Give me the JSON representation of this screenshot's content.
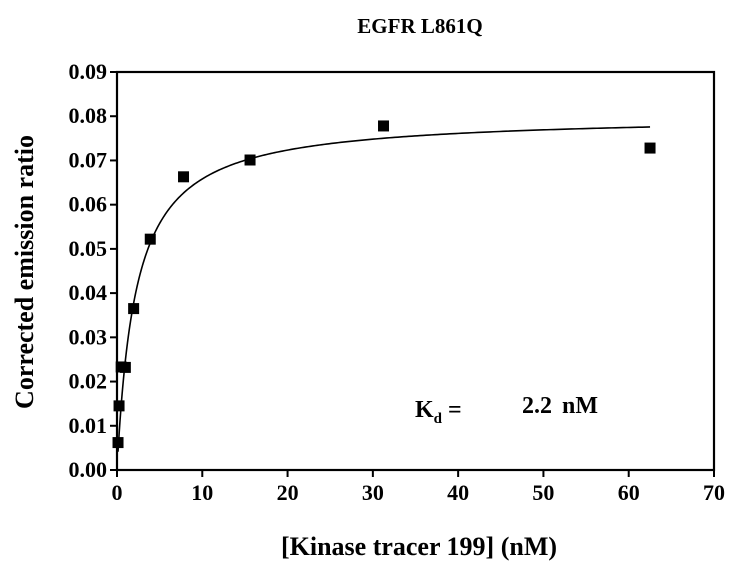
{
  "chart_data": {
    "type": "scatter",
    "title": "EGFR L861Q",
    "xlabel": "[Kinase tracer 199] (nM)",
    "ylabel": "Corrected emission ratio",
    "xlim": [
      0,
      70
    ],
    "ylim": [
      0,
      0.09
    ],
    "xticks": [
      "0",
      "10",
      "20",
      "30",
      "40",
      "50",
      "60",
      "70"
    ],
    "yticks": [
      "0.00",
      "0.01",
      "0.02",
      "0.03",
      "0.04",
      "0.05",
      "0.06",
      "0.07",
      "0.08",
      "0.09"
    ],
    "series": [
      {
        "kind": "points",
        "marker": "square",
        "x": [
          0.12,
          0.24,
          0.49,
          0.98,
          1.95,
          3.9,
          7.8,
          15.6,
          31.25,
          62.5
        ],
        "y": [
          0.0062,
          0.0145,
          0.0233,
          0.0232,
          0.0365,
          0.0522,
          0.0663,
          0.0701,
          0.0778,
          0.0728
        ]
      },
      {
        "kind": "fit-curve",
        "model": "one-site binding",
        "bmax": 0.0803,
        "kd": 2.2,
        "x_range": [
          0.12,
          62.5
        ]
      }
    ],
    "annotation": {
      "symbol": "K",
      "subscript": "d",
      "equals": "=",
      "value": "2.2",
      "unit": "nM"
    },
    "grid": false,
    "legend": "none"
  }
}
